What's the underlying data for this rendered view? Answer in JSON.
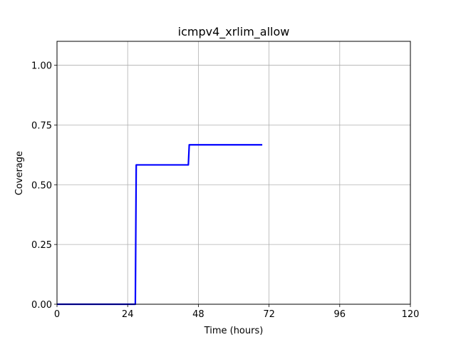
{
  "chart_data": {
    "type": "line",
    "title": "icmpv4_xrlim_allow",
    "xlabel": "Time (hours)",
    "ylabel": "Coverage",
    "xlim": [
      0,
      120
    ],
    "ylim": [
      0,
      1.1
    ],
    "xticks": [
      0,
      24,
      48,
      72,
      96,
      120
    ],
    "xtick_labels": [
      "0",
      "24",
      "48",
      "72",
      "96",
      "120"
    ],
    "yticks": [
      0,
      0.25,
      0.5,
      0.75,
      1.0
    ],
    "ytick_labels": [
      "0.00",
      "0.25",
      "0.50",
      "0.75",
      "1.00"
    ],
    "grid": true,
    "series": [
      {
        "color": "#0000ff",
        "x": [
          0,
          26.6,
          26.9,
          44.6,
          44.9,
          69.7
        ],
        "y": [
          0,
          0,
          0.583,
          0.583,
          0.667,
          0.667
        ]
      }
    ]
  }
}
